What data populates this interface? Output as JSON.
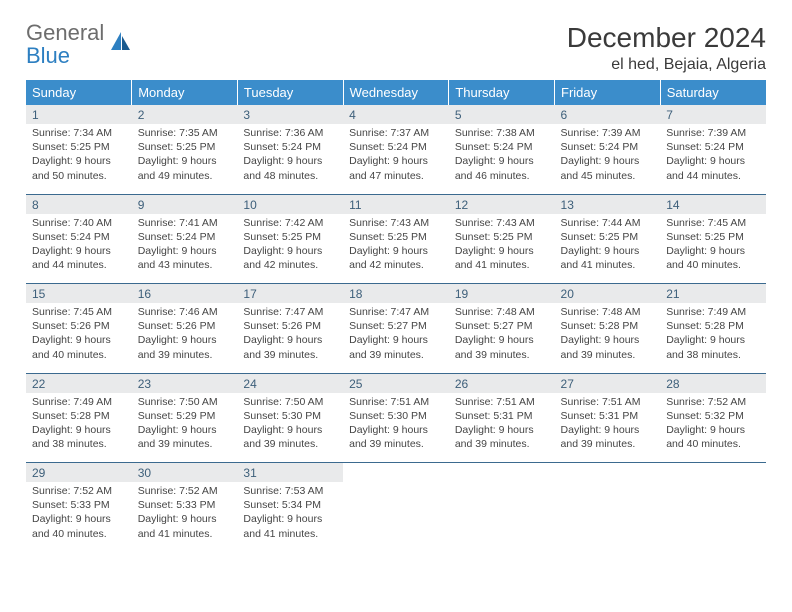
{
  "logo": {
    "text1": "General",
    "text2": "Blue"
  },
  "title": "December 2024",
  "location": "el hed, Bejaia, Algeria",
  "colors": {
    "header_bg": "#3b8dcb",
    "header_text": "#ffffff",
    "daynum_bg": "#e9eaeb",
    "daynum_text": "#3d5f7a",
    "divider": "#3b6a8f",
    "body_text": "#454545",
    "logo_gray": "#6d6d6d",
    "logo_blue": "#2d7fc1"
  },
  "weekdays": [
    "Sunday",
    "Monday",
    "Tuesday",
    "Wednesday",
    "Thursday",
    "Friday",
    "Saturday"
  ],
  "weeks": [
    [
      {
        "n": "1",
        "sr": "7:34 AM",
        "ss": "5:25 PM",
        "dl": "9 hours and 50 minutes."
      },
      {
        "n": "2",
        "sr": "7:35 AM",
        "ss": "5:25 PM",
        "dl": "9 hours and 49 minutes."
      },
      {
        "n": "3",
        "sr": "7:36 AM",
        "ss": "5:24 PM",
        "dl": "9 hours and 48 minutes."
      },
      {
        "n": "4",
        "sr": "7:37 AM",
        "ss": "5:24 PM",
        "dl": "9 hours and 47 minutes."
      },
      {
        "n": "5",
        "sr": "7:38 AM",
        "ss": "5:24 PM",
        "dl": "9 hours and 46 minutes."
      },
      {
        "n": "6",
        "sr": "7:39 AM",
        "ss": "5:24 PM",
        "dl": "9 hours and 45 minutes."
      },
      {
        "n": "7",
        "sr": "7:39 AM",
        "ss": "5:24 PM",
        "dl": "9 hours and 44 minutes."
      }
    ],
    [
      {
        "n": "8",
        "sr": "7:40 AM",
        "ss": "5:24 PM",
        "dl": "9 hours and 44 minutes."
      },
      {
        "n": "9",
        "sr": "7:41 AM",
        "ss": "5:24 PM",
        "dl": "9 hours and 43 minutes."
      },
      {
        "n": "10",
        "sr": "7:42 AM",
        "ss": "5:25 PM",
        "dl": "9 hours and 42 minutes."
      },
      {
        "n": "11",
        "sr": "7:43 AM",
        "ss": "5:25 PM",
        "dl": "9 hours and 42 minutes."
      },
      {
        "n": "12",
        "sr": "7:43 AM",
        "ss": "5:25 PM",
        "dl": "9 hours and 41 minutes."
      },
      {
        "n": "13",
        "sr": "7:44 AM",
        "ss": "5:25 PM",
        "dl": "9 hours and 41 minutes."
      },
      {
        "n": "14",
        "sr": "7:45 AM",
        "ss": "5:25 PM",
        "dl": "9 hours and 40 minutes."
      }
    ],
    [
      {
        "n": "15",
        "sr": "7:45 AM",
        "ss": "5:26 PM",
        "dl": "9 hours and 40 minutes."
      },
      {
        "n": "16",
        "sr": "7:46 AM",
        "ss": "5:26 PM",
        "dl": "9 hours and 39 minutes."
      },
      {
        "n": "17",
        "sr": "7:47 AM",
        "ss": "5:26 PM",
        "dl": "9 hours and 39 minutes."
      },
      {
        "n": "18",
        "sr": "7:47 AM",
        "ss": "5:27 PM",
        "dl": "9 hours and 39 minutes."
      },
      {
        "n": "19",
        "sr": "7:48 AM",
        "ss": "5:27 PM",
        "dl": "9 hours and 39 minutes."
      },
      {
        "n": "20",
        "sr": "7:48 AM",
        "ss": "5:28 PM",
        "dl": "9 hours and 39 minutes."
      },
      {
        "n": "21",
        "sr": "7:49 AM",
        "ss": "5:28 PM",
        "dl": "9 hours and 38 minutes."
      }
    ],
    [
      {
        "n": "22",
        "sr": "7:49 AM",
        "ss": "5:28 PM",
        "dl": "9 hours and 38 minutes."
      },
      {
        "n": "23",
        "sr": "7:50 AM",
        "ss": "5:29 PM",
        "dl": "9 hours and 39 minutes."
      },
      {
        "n": "24",
        "sr": "7:50 AM",
        "ss": "5:30 PM",
        "dl": "9 hours and 39 minutes."
      },
      {
        "n": "25",
        "sr": "7:51 AM",
        "ss": "5:30 PM",
        "dl": "9 hours and 39 minutes."
      },
      {
        "n": "26",
        "sr": "7:51 AM",
        "ss": "5:31 PM",
        "dl": "9 hours and 39 minutes."
      },
      {
        "n": "27",
        "sr": "7:51 AM",
        "ss": "5:31 PM",
        "dl": "9 hours and 39 minutes."
      },
      {
        "n": "28",
        "sr": "7:52 AM",
        "ss": "5:32 PM",
        "dl": "9 hours and 40 minutes."
      }
    ],
    [
      {
        "n": "29",
        "sr": "7:52 AM",
        "ss": "5:33 PM",
        "dl": "9 hours and 40 minutes."
      },
      {
        "n": "30",
        "sr": "7:52 AM",
        "ss": "5:33 PM",
        "dl": "9 hours and 41 minutes."
      },
      {
        "n": "31",
        "sr": "7:53 AM",
        "ss": "5:34 PM",
        "dl": "9 hours and 41 minutes."
      },
      null,
      null,
      null,
      null
    ]
  ],
  "labels": {
    "sunrise": "Sunrise:",
    "sunset": "Sunset:",
    "daylight": "Daylight:"
  }
}
